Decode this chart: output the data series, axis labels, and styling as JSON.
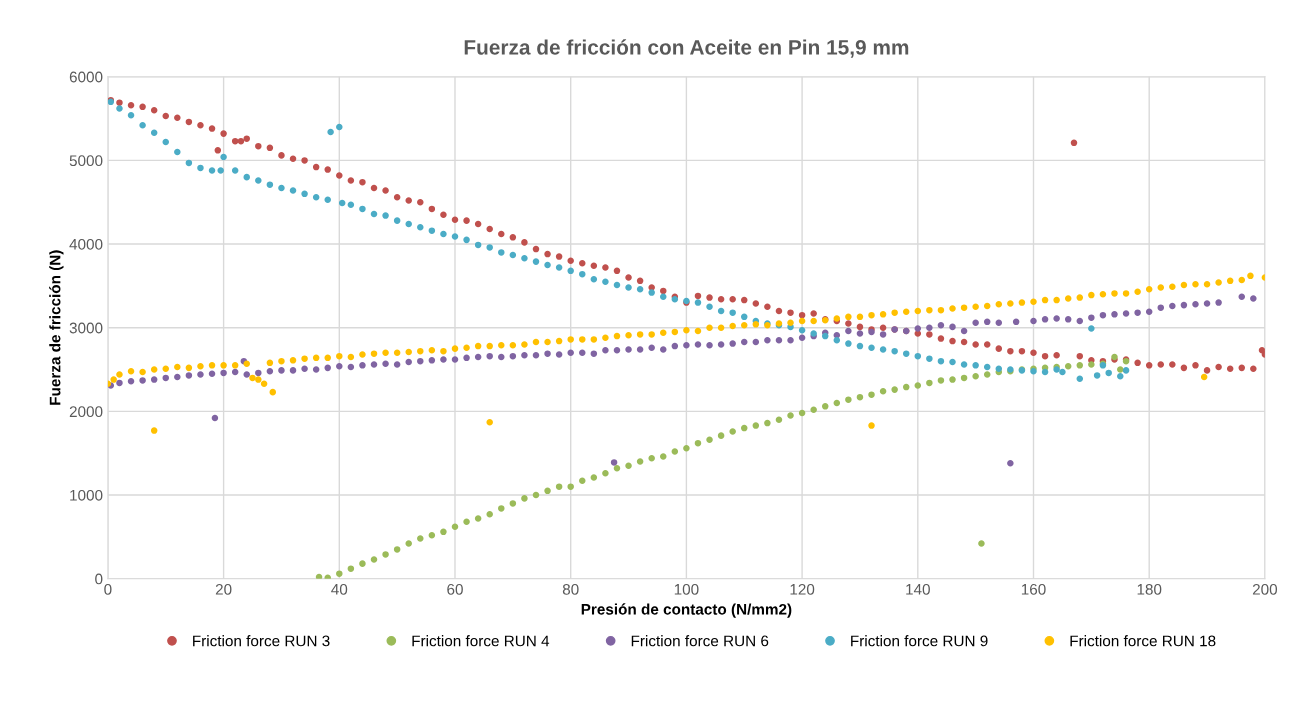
{
  "chart_data": {
    "type": "scatter",
    "title": "Fuerza de fricción con Aceite en Pin 15,9 mm",
    "xlabel": "Presión de contacto (N/mm2)",
    "ylabel": "Fuerza de fricción (N)",
    "xlim": [
      0,
      200
    ],
    "xticks": [
      0,
      20,
      40,
      60,
      80,
      100,
      120,
      140,
      160,
      180,
      200
    ],
    "ylim": [
      0,
      6000
    ],
    "yticks": [
      0,
      1000,
      2000,
      3000,
      4000,
      5000,
      6000
    ],
    "grid": true,
    "legend": "bottom",
    "marker": "circle",
    "series": [
      {
        "name": "Friction force RUN 3",
        "color": "#c0504d",
        "x": [
          0.5,
          2,
          4,
          6,
          8,
          10,
          12,
          14,
          16,
          18,
          19,
          20,
          22,
          23,
          24,
          26,
          28,
          30,
          32,
          34,
          36,
          38,
          40,
          42,
          44,
          46,
          48,
          50,
          52,
          54,
          56,
          58,
          60,
          62,
          64,
          66,
          68,
          70,
          72,
          74,
          76,
          78,
          80,
          82,
          84,
          86,
          88,
          90,
          92,
          94,
          96,
          98,
          100,
          102,
          104,
          106,
          108,
          110,
          112,
          114,
          116,
          118,
          120,
          122,
          124,
          126,
          128,
          130,
          132,
          134,
          136,
          138,
          140,
          142,
          144,
          146,
          148,
          150,
          152,
          154,
          156,
          158,
          160,
          162,
          164,
          167,
          168,
          170,
          172,
          174,
          176,
          178,
          180,
          182,
          184,
          186,
          188,
          190,
          192,
          194,
          196,
          198,
          199.5,
          200
        ],
        "values": [
          5720,
          5690,
          5660,
          5640,
          5600,
          5530,
          5510,
          5460,
          5420,
          5380,
          5120,
          5320,
          5230,
          5230,
          5260,
          5170,
          5150,
          5060,
          5020,
          5000,
          4920,
          4890,
          4820,
          4760,
          4740,
          4670,
          4640,
          4560,
          4520,
          4500,
          4420,
          4350,
          4290,
          4280,
          4240,
          4180,
          4120,
          4080,
          4020,
          3940,
          3880,
          3850,
          3800,
          3770,
          3740,
          3720,
          3680,
          3600,
          3560,
          3480,
          3440,
          3370,
          3300,
          3380,
          3360,
          3340,
          3340,
          3330,
          3290,
          3250,
          3200,
          3180,
          3150,
          3170,
          3100,
          3080,
          3050,
          3010,
          2980,
          3000,
          2980,
          2960,
          2930,
          2920,
          2870,
          2840,
          2830,
          2800,
          2800,
          2750,
          2720,
          2720,
          2700,
          2660,
          2670,
          5210,
          2660,
          2610,
          2600,
          2620,
          2620,
          2580,
          2550,
          2560,
          2560,
          2520,
          2550,
          2490,
          2530,
          2510,
          2520,
          2510,
          2730,
          2680
        ]
      },
      {
        "name": "Friction force RUN 4",
        "color": "#9bbb59",
        "x": [
          36.5,
          38,
          40,
          42,
          44,
          46,
          48,
          50,
          52,
          54,
          56,
          58,
          60,
          62,
          64,
          66,
          68,
          70,
          72,
          74,
          76,
          78,
          80,
          82,
          84,
          86,
          88,
          90,
          92,
          94,
          96,
          98,
          100,
          102,
          104,
          106,
          108,
          110,
          112,
          114,
          116,
          118,
          120,
          122,
          124,
          126,
          128,
          130,
          132,
          134,
          136,
          138,
          140,
          142,
          144,
          146,
          148,
          150,
          151,
          152,
          154,
          156,
          158,
          160,
          162,
          164,
          166,
          168,
          170,
          172,
          174,
          175,
          176
        ],
        "values": [
          20,
          10,
          60,
          120,
          180,
          230,
          290,
          350,
          420,
          480,
          520,
          560,
          620,
          680,
          720,
          770,
          840,
          900,
          960,
          1000,
          1050,
          1100,
          1100,
          1170,
          1210,
          1260,
          1320,
          1350,
          1400,
          1440,
          1460,
          1520,
          1560,
          1620,
          1660,
          1710,
          1760,
          1800,
          1830,
          1860,
          1900,
          1950,
          1980,
          2020,
          2060,
          2100,
          2140,
          2170,
          2200,
          2240,
          2260,
          2290,
          2310,
          2340,
          2370,
          2380,
          2400,
          2420,
          420,
          2440,
          2470,
          2480,
          2500,
          2510,
          2520,
          2530,
          2540,
          2550,
          2560,
          2570,
          2650,
          2500,
          2600
        ]
      },
      {
        "name": "Friction force RUN 6",
        "color": "#8064a2",
        "x": [
          0.5,
          2,
          4,
          6,
          8,
          10,
          12,
          14,
          16,
          18.5,
          18,
          20,
          22,
          23.5,
          24,
          26,
          28,
          30,
          32,
          34,
          36,
          38,
          40,
          42,
          44,
          46,
          48,
          50,
          52,
          54,
          56,
          58,
          60,
          62,
          64,
          66,
          68,
          70,
          72,
          74,
          76,
          78,
          80,
          82,
          84,
          86,
          87.5,
          88,
          90,
          92,
          94,
          96,
          98,
          100,
          102,
          104,
          106,
          108,
          110,
          112,
          114,
          116,
          118,
          120,
          122,
          124,
          126,
          128,
          130,
          132,
          134,
          136,
          138,
          140,
          142,
          144,
          146,
          148,
          150,
          152,
          154,
          156,
          157,
          160,
          162,
          164,
          166,
          168,
          170,
          172,
          174,
          176,
          178,
          180,
          182,
          184,
          186,
          188,
          190,
          192,
          196,
          198
        ],
        "values": [
          2310,
          2340,
          2360,
          2370,
          2380,
          2400,
          2410,
          2430,
          2440,
          1920,
          2450,
          2460,
          2470,
          2600,
          2440,
          2460,
          2480,
          2490,
          2490,
          2510,
          2500,
          2520,
          2540,
          2530,
          2550,
          2560,
          2570,
          2560,
          2590,
          2600,
          2610,
          2620,
          2620,
          2640,
          2650,
          2660,
          2650,
          2660,
          2670,
          2670,
          2690,
          2680,
          2700,
          2700,
          2690,
          2730,
          1390,
          2730,
          2740,
          2740,
          2760,
          2740,
          2780,
          2790,
          2800,
          2790,
          2800,
          2810,
          2830,
          2830,
          2850,
          2850,
          2850,
          2880,
          2900,
          2940,
          2910,
          2960,
          2930,
          2950,
          2920,
          2980,
          2960,
          2990,
          3000,
          3030,
          3010,
          2960,
          3060,
          3070,
          3060,
          1380,
          3070,
          3080,
          3100,
          3110,
          3100,
          3080,
          3120,
          3150,
          3160,
          3170,
          3180,
          3190,
          3240,
          3260,
          3270,
          3280,
          3290,
          3300,
          3370,
          3350
        ]
      },
      {
        "name": "Friction force RUN 9",
        "color": "#4bacc6",
        "x": [
          0.5,
          2,
          4,
          6,
          8,
          10,
          12,
          14,
          16,
          18,
          19.5,
          20,
          22,
          24,
          26,
          28,
          30,
          32,
          34,
          36,
          38,
          38.5,
          40,
          40.5,
          42,
          44,
          46,
          48,
          50,
          52,
          54,
          56,
          58,
          60,
          62,
          64,
          66,
          68,
          70,
          72,
          74,
          76,
          78,
          80,
          82,
          84,
          86,
          88,
          90,
          92,
          94,
          96,
          98,
          100,
          102,
          104,
          106,
          108,
          110,
          112,
          114,
          116,
          118,
          120,
          122,
          124,
          126,
          128,
          130,
          132,
          134,
          136,
          138,
          140,
          142,
          144,
          146,
          148,
          150,
          152,
          154,
          156,
          158,
          160,
          162,
          164,
          165,
          168,
          170,
          171,
          172,
          173,
          175,
          176
        ],
        "values": [
          5700,
          5620,
          5540,
          5420,
          5330,
          5220,
          5100,
          4970,
          4910,
          4880,
          4880,
          5040,
          4880,
          4800,
          4760,
          4710,
          4670,
          4640,
          4600,
          4560,
          4530,
          5340,
          5400,
          4490,
          4470,
          4420,
          4360,
          4340,
          4280,
          4240,
          4200,
          4160,
          4120,
          4090,
          4050,
          3990,
          3960,
          3900,
          3870,
          3830,
          3790,
          3750,
          3720,
          3680,
          3640,
          3580,
          3550,
          3510,
          3480,
          3460,
          3420,
          3370,
          3340,
          3320,
          3300,
          3250,
          3200,
          3180,
          3130,
          3080,
          3050,
          3030,
          3010,
          2970,
          2930,
          2900,
          2850,
          2810,
          2780,
          2760,
          2740,
          2720,
          2690,
          2660,
          2630,
          2600,
          2590,
          2560,
          2550,
          2530,
          2510,
          2500,
          2490,
          2480,
          2470,
          2500,
          2470,
          2390,
          2990,
          2430,
          2550,
          2460,
          2420,
          2490
        ]
      },
      {
        "name": "Friction force RUN 18",
        "color": "#ffc000",
        "x": [
          0,
          1,
          2,
          4,
          6,
          8,
          8,
          10,
          12,
          14,
          16,
          18,
          20,
          22,
          24,
          25,
          26,
          27,
          28.5,
          28,
          30,
          32,
          34,
          36,
          38,
          40,
          42,
          44,
          46,
          48,
          50,
          52,
          54,
          56,
          58,
          60,
          62,
          64,
          66,
          66,
          68,
          70,
          72,
          74,
          76,
          78,
          80,
          82,
          84,
          86,
          88,
          90,
          92,
          94,
          96,
          98,
          100,
          102,
          104,
          106,
          108,
          110,
          112,
          114,
          116,
          118,
          120,
          122,
          124,
          126,
          128,
          130,
          132,
          132,
          134,
          136,
          138,
          140,
          142,
          144,
          146,
          148,
          150,
          152,
          154,
          156,
          158,
          160,
          162,
          164,
          166,
          168,
          170,
          172,
          174,
          176,
          178,
          180,
          182,
          184,
          186,
          188,
          189.5,
          190,
          192,
          194,
          196,
          197.5,
          200
        ],
        "values": [
          2330,
          2380,
          2440,
          2480,
          2470,
          1770,
          2500,
          2510,
          2530,
          2520,
          2540,
          2550,
          2550,
          2550,
          2570,
          2400,
          2380,
          2330,
          2230,
          2580,
          2600,
          2610,
          2630,
          2640,
          2640,
          2660,
          2650,
          2680,
          2690,
          2700,
          2700,
          2710,
          2720,
          2730,
          2720,
          2750,
          2760,
          2780,
          1870,
          2780,
          2790,
          2790,
          2800,
          2830,
          2830,
          2840,
          2860,
          2860,
          2860,
          2880,
          2900,
          2910,
          2920,
          2920,
          2940,
          2950,
          2970,
          2960,
          3000,
          3000,
          3020,
          3030,
          3040,
          3030,
          3050,
          3060,
          3080,
          3080,
          3090,
          3110,
          3130,
          3130,
          1830,
          3150,
          3160,
          3180,
          3190,
          3200,
          3210,
          3210,
          3230,
          3240,
          3250,
          3260,
          3280,
          3290,
          3300,
          3310,
          3330,
          3330,
          3350,
          3360,
          3390,
          3400,
          3410,
          3410,
          3430,
          3460,
          3480,
          3490,
          3510,
          3520,
          2410,
          3520,
          3540,
          3560,
          3570,
          3620,
          3600
        ]
      }
    ]
  }
}
